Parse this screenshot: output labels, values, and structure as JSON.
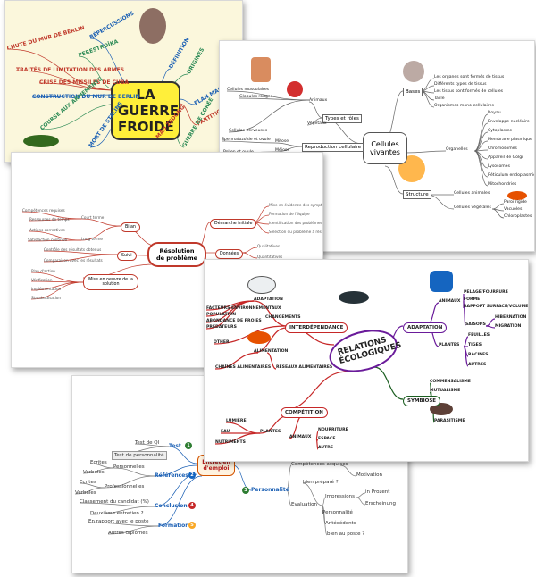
{
  "cold_war": {
    "title": "LA GUERRE FROIDE",
    "branches": [
      "RÉPERCUSSIONS",
      "CHUTE DU MUR DE BERLIN",
      "PERESTROÏKA",
      "TRAITÉS DE LIMITATION DES ARMES",
      "CRISE DES MISSILES DE CUBA",
      "CONSTRUCTION DU MUR DE BERLIN",
      "COURSE AUX ARMEMENTS",
      "MORT DE STALINE",
      "DÉFINITION",
      "ORIGINES",
      "PLAN MARSHALL",
      "PARTITION DES ÉTATS",
      "MAO ZEDONG",
      "GUERRE DE CORÉE"
    ]
  },
  "cells": {
    "center": "Cellules vivantes",
    "bases": {
      "label": "Bases",
      "items": [
        "Les organes sont formés de tissus",
        "Différents types de tissus",
        "Les tissus sont formés de cellules",
        "Taille",
        "Organismes mono-cellulaires"
      ]
    },
    "organelles": {
      "label": "Organelles",
      "items": [
        "Noyau",
        "Enveloppe nucléaire",
        "Cytoplasme",
        "Membrane plasmique",
        "Chromosomes",
        "Appareil de Golgi",
        "Lysosomes",
        "Réticulum endoplasmique",
        "Mitochondries"
      ]
    },
    "structure": {
      "label": "Structure",
      "animal": "Cellules animales",
      "plant": "Cellules végétales",
      "plant_items": [
        "Paroi rigide",
        "Vacuoles",
        "Chloroplastes"
      ]
    },
    "types": {
      "label": "Types et rôles",
      "animals": "Animaux",
      "plants": "Végétaux",
      "items": [
        "Cellules musculaires",
        "Globules rouges",
        "Cellules nerveuses"
      ]
    },
    "reproduction": {
      "label": "Reproduction cellulaire",
      "items": [
        "Mitose",
        "Méiose",
        "Spermatozoïde et ovule",
        "Pollen et ovule"
      ]
    }
  },
  "problem": {
    "center": "Résolution de problème",
    "bilan": {
      "label": "Bilan",
      "items": [
        "Court terme",
        "Long terme",
        "Compétences requises",
        "Ressources de temps",
        "Actions correctives",
        "Satisfaction continue"
      ]
    },
    "demarche": {
      "label": "Démarche initiale",
      "items": [
        "Mise en évidence des symptômes",
        "Formation de l'équipe",
        "Identification des problèmes principaux",
        "Sélection du problème à résoudre"
      ]
    },
    "donnees": {
      "label": "Données",
      "items": [
        "Qualitatives",
        "Quantitatives"
      ]
    },
    "suivi": {
      "label": "Suivi",
      "items": [
        "Contrôle des résultats obtenus",
        "Comparaison avec les résultats"
      ]
    },
    "solution": {
      "label": "Mise en oeuvre de la solution",
      "items": [
        "Plan d'action",
        "Vérification",
        "Implémentation",
        "Standardisation"
      ]
    }
  },
  "ecology": {
    "center": "RELATIONS ÉCOLOGIQUES",
    "interdependence": {
      "label": "INTERDÉPENDANCE",
      "adaptation": "ADAPTATION",
      "adaptation_items": [
        "FACTEURS ENVIRONNEMENTAUX",
        "POPULATION",
        "ABONDANCE DE PROIES",
        "PRÉDATEURS"
      ],
      "changes": "CHANGEMENTS",
      "other": "OTHER",
      "food": "ALIMENTATION",
      "food_items": [
        "CHAÎNES ALIMENTAIRES",
        "RÉSEAUX ALIMENTAIRES"
      ]
    },
    "adaptation": {
      "label": "ADAPTATION",
      "animals": "ANIMAUX",
      "animal_items": [
        "PELAGE/FOURRURE",
        "FORME",
        "RAPPORT SURFACE/VOLUME",
        "SAISONS",
        "HIBERNATION",
        "MIGRATION"
      ],
      "plants": "PLANTES",
      "plant_items": [
        "FEUILLES",
        "TIGES",
        "RACINES",
        "AUTRES"
      ]
    },
    "symbiosis": {
      "label": "SYMBIOSE",
      "items": [
        "COMMENSALISME",
        "MUTUALISME",
        "PARASITISME"
      ]
    },
    "competition": {
      "label": "COMPÉTITION",
      "plants": "PLANTES",
      "plant_items": [
        "LUMIÈRE",
        "EAU",
        "NUTRIMENTS"
      ],
      "animals": "ANIMAUX",
      "animal_items": [
        "NOURRITURE",
        "ESPACE",
        "AUTRE"
      ]
    }
  },
  "interview": {
    "center": "Entretien d'emploi",
    "test": {
      "label": "Test",
      "number": "1",
      "items": [
        "Test de QI",
        "Test de personnalité"
      ]
    },
    "references": {
      "label": "Références",
      "number": "2",
      "items": [
        "Personnelles",
        "Professionnelles",
        "Ecrites",
        "Verbales",
        "Ecrites",
        "Verbales"
      ]
    },
    "personality": {
      "label": "Personnalité",
      "number": "3",
      "items": [
        "Compétences acquises",
        "Motivation",
        "Evaluation",
        "bien préparé ?",
        "Impressions",
        "Personnalité",
        "Antécédents",
        "bien au poste ?",
        "in Prozent",
        "Erscheinung"
      ]
    },
    "conclusion": {
      "label": "Conclusion",
      "number": "4",
      "items": [
        "Classement du candidat (%)",
        "Deuxième entretien ?"
      ]
    },
    "training": {
      "label": "Formation",
      "number": "5",
      "items": [
        "En rapport avec le poste",
        "Autres diplômes"
      ]
    }
  }
}
